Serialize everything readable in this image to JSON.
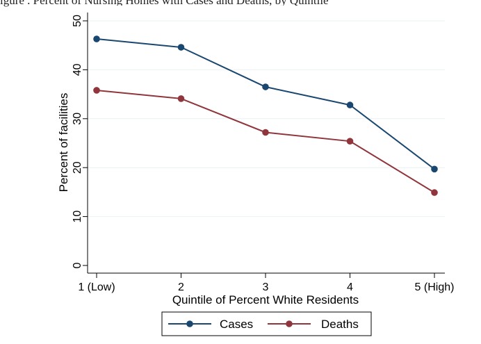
{
  "caption_fragment": "igure . Percent of Nursing Homes with Cases and Deaths, by Quintile",
  "chart_data": {
    "type": "line",
    "title": "",
    "xlabel": "Quintile of Percent White Residents",
    "ylabel": "Percent of facilities",
    "categories": [
      "1 (Low)",
      "2",
      "3",
      "4",
      "5 (High)"
    ],
    "series": [
      {
        "name": "Cases",
        "color": "#1a476f",
        "values": [
          46.3,
          44.6,
          36.5,
          32.8,
          19.7
        ]
      },
      {
        "name": "Deaths",
        "color": "#90353b",
        "values": [
          35.8,
          34.1,
          27.2,
          25.4,
          14.9
        ]
      }
    ],
    "ylim": [
      0,
      50
    ],
    "yticks": [
      "0",
      "10",
      "20",
      "30",
      "40",
      "50"
    ],
    "grid": true,
    "legend": "bottom"
  }
}
